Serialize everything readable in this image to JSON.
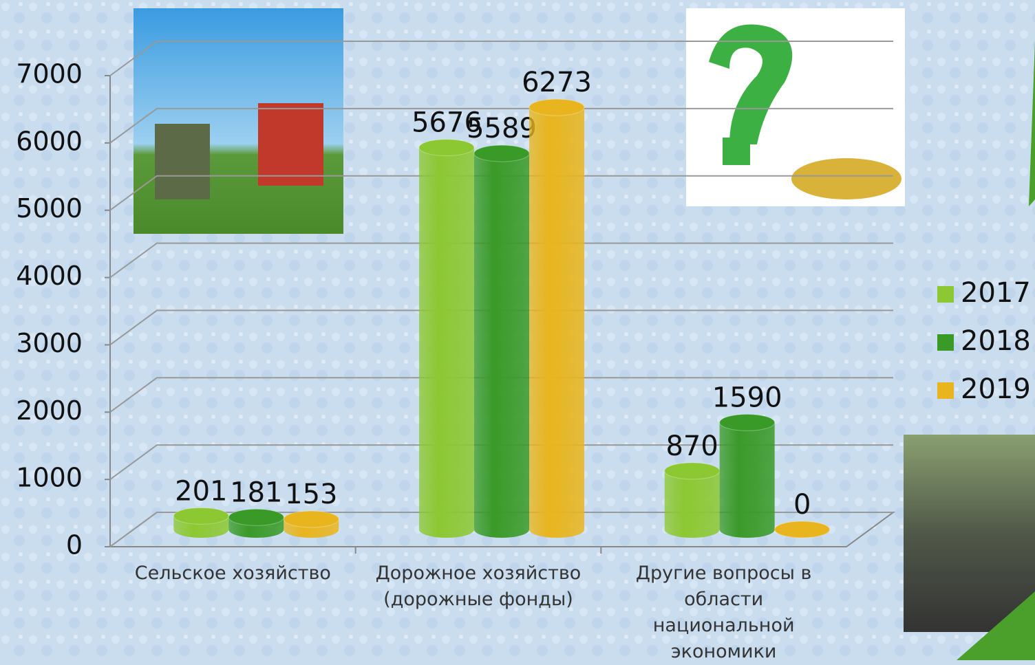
{
  "chart_data": {
    "type": "bar3d",
    "categories": [
      "Сельское хозяйство",
      "Дорожное хозяйство (дорожные фонды)",
      "Другие вопросы в области национальной экономики"
    ],
    "series": [
      {
        "name": "2017",
        "color": "#8cc832",
        "values": [
          201,
          5676,
          870
        ]
      },
      {
        "name": "2018",
        "color": "#3a9a28",
        "values": [
          181,
          5589,
          1590
        ]
      },
      {
        "name": "2019",
        "color": "#e8b51e",
        "values": [
          153,
          6273,
          0
        ]
      }
    ],
    "ylim": [
      0,
      7000
    ],
    "yticks": [
      0,
      1000,
      2000,
      3000,
      4000,
      5000,
      6000,
      7000
    ],
    "grid": true
  }
}
